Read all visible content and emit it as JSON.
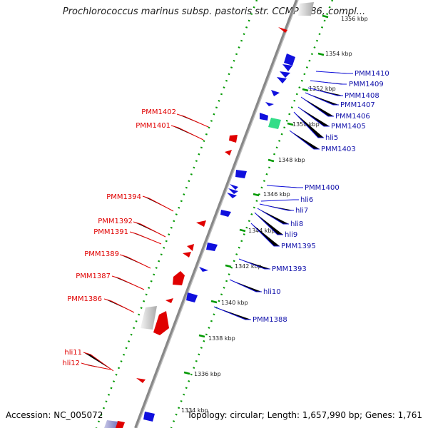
{
  "title": "Prochlorococcus marinus subsp. pastoris str. CCMP1986, compl...",
  "footer": {
    "accession": "Accession: NC_005072",
    "info": "Topology: circular; Length: 1,657,990 bp; Genes: 1,761"
  },
  "colors": {
    "reverse_strand": "#e00000",
    "forward_strand": "#1010dd",
    "backbone": "#888888",
    "tick": "#009900",
    "rna": "#33dd88"
  },
  "scale_labels": [
    "1356 kbp",
    "1354 kbp",
    "1352 kbp",
    "1350 kbp",
    "1348 kbp",
    "1346 kbp",
    "1344 kbp",
    "1342 kbp",
    "1340 kbp",
    "1338 kbp",
    "1336 kbp",
    "1334 kbp"
  ],
  "left_labels": [
    "PMM1402",
    "PMM1401",
    "PMM1394",
    "PMM1392",
    "PMM1391",
    "PMM1389",
    "PMM1387",
    "PMM1386",
    "hli11",
    "hli12"
  ],
  "right_labels": [
    "PMM1410",
    "PMM1409",
    "PMM1408",
    "PMM1407",
    "PMM1406",
    "PMM1405",
    "hli5",
    "PMM1403",
    "PMM1400",
    "hli6",
    "hli7",
    "hli8",
    "hli9",
    "PMM1395",
    "PMM1393",
    "hli10",
    "PMM1388"
  ]
}
